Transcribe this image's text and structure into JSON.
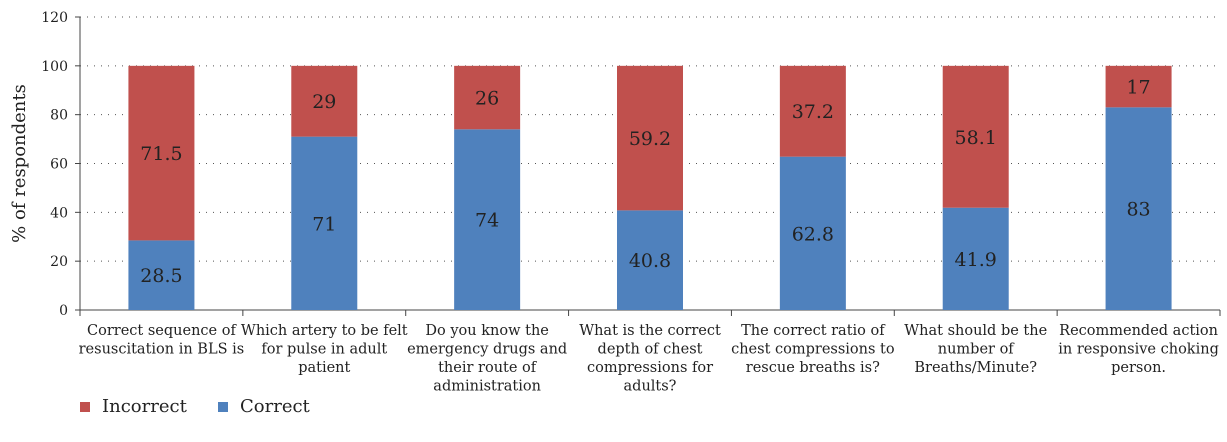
{
  "chart_data": {
    "type": "bar",
    "stacked": true,
    "categories": [
      [
        "Correct sequence of",
        "resuscitation in BLS is"
      ],
      [
        "Which artery to be felt",
        "for pulse in adult",
        "patient"
      ],
      [
        "Do you know the",
        "emergency drugs and",
        "their route of",
        "administration"
      ],
      [
        "What is the correct",
        "depth of chest",
        "compressions for",
        "adults?"
      ],
      [
        "The correct ratio of",
        "chest compressions to",
        "rescue breaths is?"
      ],
      [
        "What should be the",
        "number of",
        "Breaths/Minute?"
      ],
      [
        "Recommended action",
        "in responsive choking",
        "person."
      ]
    ],
    "series": [
      {
        "name": "Correct",
        "color": "#4f81bd",
        "values": [
          28.5,
          71,
          74,
          40.8,
          62.8,
          41.9,
          83
        ]
      },
      {
        "name": "Incorrect",
        "color": "#c0504d",
        "values": [
          71.5,
          29,
          26,
          59.2,
          37.2,
          58.1,
          17
        ]
      }
    ],
    "ylabel": "% of respondents",
    "ylim": [
      0,
      120
    ],
    "yticks": [
      0,
      20,
      40,
      60,
      80,
      100,
      120
    ],
    "grid": "dotted-horizontal",
    "legend_order": [
      "Incorrect",
      "Correct"
    ],
    "legend_position": "bottom-left"
  }
}
